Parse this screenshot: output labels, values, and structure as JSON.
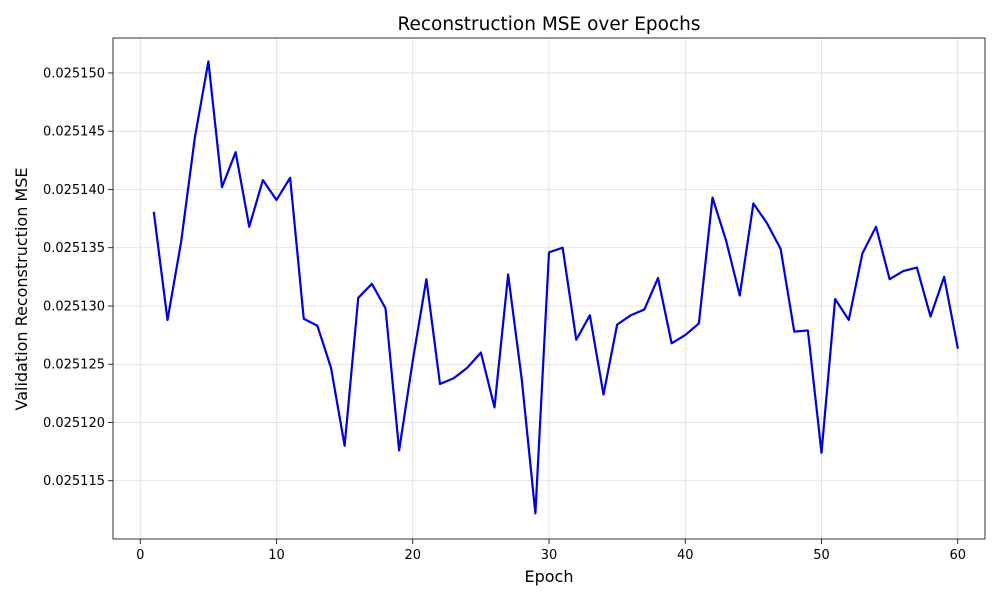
{
  "chart_data": {
    "type": "line",
    "title": "Reconstruction MSE over Epochs",
    "xlabel": "Epoch",
    "ylabel": "Validation Reconstruction MSE",
    "xlim": [
      -2,
      62
    ],
    "ylim": [
      0.02511,
      0.025153
    ],
    "xticks": [
      0,
      10,
      20,
      30,
      40,
      50,
      60
    ],
    "yticks": [
      0.025115,
      0.02512,
      0.025125,
      0.02513,
      0.025135,
      0.02514,
      0.025145,
      0.02515
    ],
    "ytick_labels": [
      "0.025115",
      "0.025120",
      "0.025125",
      "0.025130",
      "0.025135",
      "0.025140",
      "0.025145",
      "0.025150"
    ],
    "grid": true,
    "line_color": "#0000dd",
    "series": [
      {
        "x": [
          1,
          2,
          3,
          4,
          5,
          6,
          7,
          8,
          9,
          10,
          11,
          12,
          13,
          14,
          15,
          16,
          17,
          18,
          19,
          20,
          21,
          22,
          23,
          24,
          25,
          26,
          27,
          28,
          29,
          30,
          31,
          32,
          33,
          34,
          35,
          36,
          37,
          38,
          39,
          40,
          41,
          42,
          43,
          44,
          45,
          46,
          47,
          48,
          49,
          50,
          51,
          52,
          53,
          54,
          55,
          56,
          57,
          58,
          59,
          60
        ],
        "y": [
          0.025138,
          0.0251288,
          0.0251355,
          0.0251444,
          0.025151,
          0.0251402,
          0.0251432,
          0.0251368,
          0.0251408,
          0.0251391,
          0.025141,
          0.0251289,
          0.0251283,
          0.0251247,
          0.025118,
          0.0251307,
          0.0251319,
          0.0251298,
          0.0251176,
          0.0251253,
          0.0251323,
          0.0251233,
          0.0251238,
          0.0251247,
          0.025126,
          0.0251213,
          0.0251327,
          0.0251237,
          0.0251122,
          0.0251346,
          0.025135,
          0.0251271,
          0.0251292,
          0.0251224,
          0.0251284,
          0.0251292,
          0.0251297,
          0.0251324,
          0.0251268,
          0.0251275,
          0.0251285,
          0.0251393,
          0.0251356,
          0.0251309,
          0.0251388,
          0.0251371,
          0.0251349,
          0.0251278,
          0.0251279,
          0.0251174,
          0.0251306,
          0.0251288,
          0.0251345,
          0.0251368,
          0.0251323,
          0.025133,
          0.0251333,
          0.0251291,
          0.0251325,
          0.0251264
        ]
      }
    ]
  }
}
